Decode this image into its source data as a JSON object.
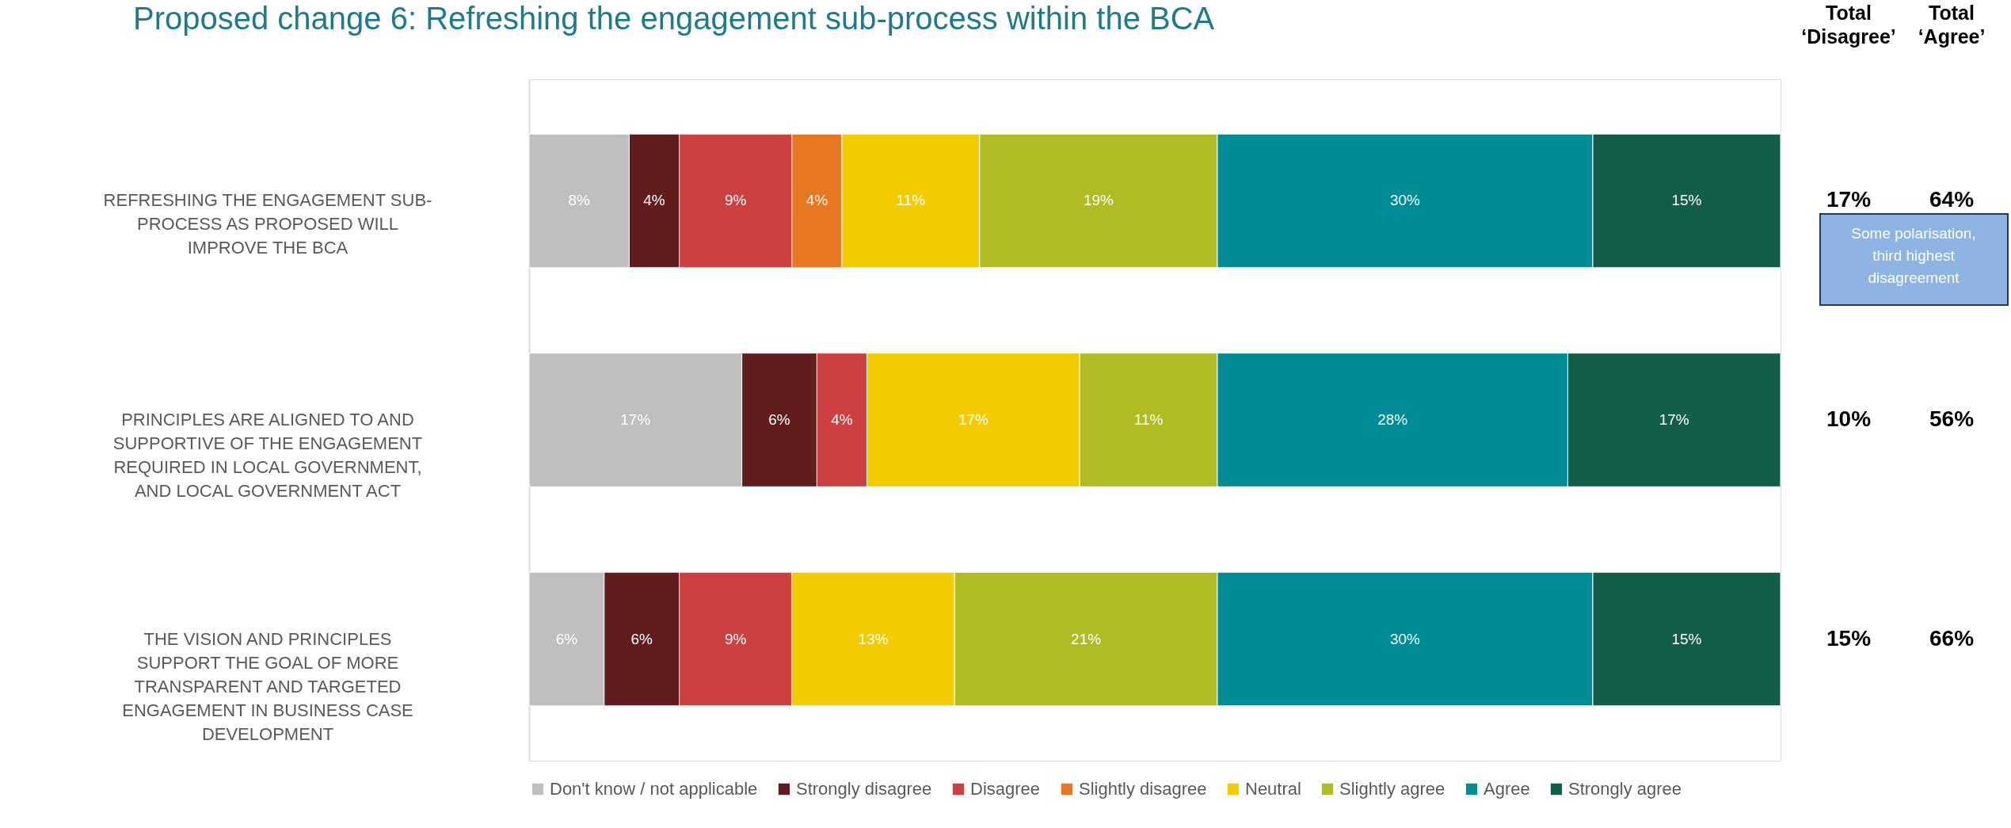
{
  "chart_data": {
    "type": "bar",
    "orientation": "horizontal",
    "stacked": true,
    "legend": "bottom",
    "title": "Proposed change 6: Refreshing the engagement sub-process within the BCA",
    "categories": [
      "REFRESHING THE ENGAGEMENT SUB-PROCESS AS PROPOSED WILL IMPROVE THE BCA",
      "PRINCIPLES ARE ALIGNED TO AND SUPPORTIVE OF THE ENGAGEMENT REQUIRED IN LOCAL GOVERNMENT, AND LOCAL GOVERNMENT ACT",
      "THE VISION AND PRINCIPLES SUPPORT THE GOAL OF MORE TRANSPARENT AND TARGETED ENGAGEMENT IN BUSINESS CASE DEVELOPMENT"
    ],
    "series": [
      {
        "name": "Don't know / not applicable",
        "color": "#bfbfbf",
        "values": [
          8,
          17,
          6
        ],
        "value_labels": [
          "8%",
          "17%",
          "6%"
        ]
      },
      {
        "name": "Strongly disagree",
        "color": "#611c1e",
        "values": [
          4,
          6,
          6
        ],
        "value_labels": [
          "4%",
          "6%",
          "6%"
        ]
      },
      {
        "name": "Disagree",
        "color": "#cc4040",
        "values": [
          9,
          4,
          9
        ],
        "value_labels": [
          "9%",
          "4%",
          "9%"
        ]
      },
      {
        "name": "Slightly disagree",
        "color": "#e87722",
        "values": [
          4,
          null,
          null
        ],
        "value_labels": [
          "4%",
          null,
          null
        ]
      },
      {
        "name": "Neutral",
        "color": "#f2cc00",
        "values": [
          11,
          17,
          13
        ],
        "value_labels": [
          "11%",
          "17%",
          "13%"
        ]
      },
      {
        "name": "Slightly agree",
        "color": "#afbd22",
        "values": [
          19,
          11,
          21
        ],
        "value_labels": [
          "19%",
          "11%",
          "21%"
        ]
      },
      {
        "name": "Agree",
        "color": "#008c95",
        "values": [
          30,
          28,
          30
        ],
        "value_labels": [
          "30%",
          "28%",
          "30%"
        ]
      },
      {
        "name": "Strongly agree",
        "color": "#125e48",
        "values": [
          15,
          17,
          15
        ],
        "value_labels": [
          "15%",
          "17%",
          "15%"
        ]
      }
    ],
    "annotations": [
      "Total ‘Disagree’",
      "Total ‘Agree’",
      "17%",
      "64%",
      "10%",
      "56%",
      "15%",
      "66%",
      "Some polarisation, third highest disagreement"
    ]
  }
}
